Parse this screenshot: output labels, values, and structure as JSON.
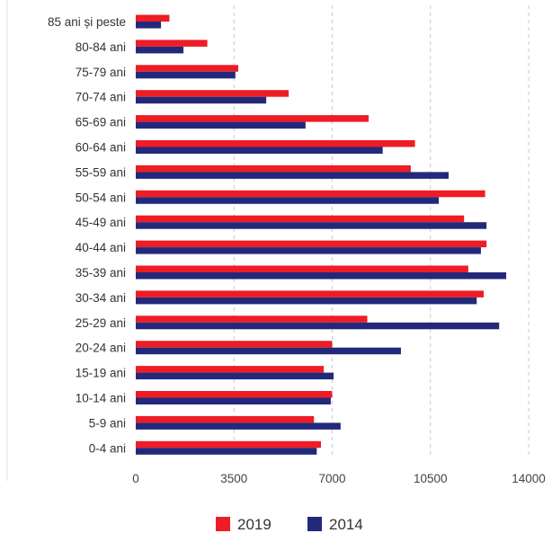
{
  "chart_data": {
    "type": "bar",
    "orientation": "horizontal",
    "title": "",
    "xlabel": "",
    "ylabel": "",
    "categories": [
      "85 ani și peste",
      "80-84 ani",
      "75-79 ani",
      "70-74 ani",
      "65-69 ani",
      "60-64 ani",
      "55-59 ani",
      "50-54 ani",
      "45-49 ani",
      "40-44 ani",
      "35-39 ani",
      "30-34 ani",
      "25-29 ani",
      "20-24 ani",
      "15-19 ani",
      "10-14 ani",
      "5-9 ani",
      "0-4 ani"
    ],
    "series": [
      {
        "name": "2019",
        "color": "#ee1c25",
        "values": [
          1200,
          2550,
          3650,
          5450,
          8300,
          9950,
          9800,
          12450,
          11700,
          12500,
          11850,
          12400,
          8250,
          7000,
          6700,
          7000,
          6350,
          6600
        ]
      },
      {
        "name": "2014",
        "color": "#23297a",
        "values": [
          900,
          1700,
          3550,
          4650,
          6050,
          8800,
          11150,
          10800,
          12500,
          12300,
          13200,
          12150,
          12950,
          9450,
          7050,
          6950,
          7300,
          6450
        ]
      }
    ],
    "xlim": [
      0,
      14000
    ],
    "xticks": [
      0,
      3500,
      7000,
      10500,
      14000
    ],
    "grid": {
      "vertical": true,
      "style": "dashed"
    },
    "legend": {
      "position": "bottom-center",
      "entries": [
        "2019",
        "2014"
      ]
    }
  }
}
